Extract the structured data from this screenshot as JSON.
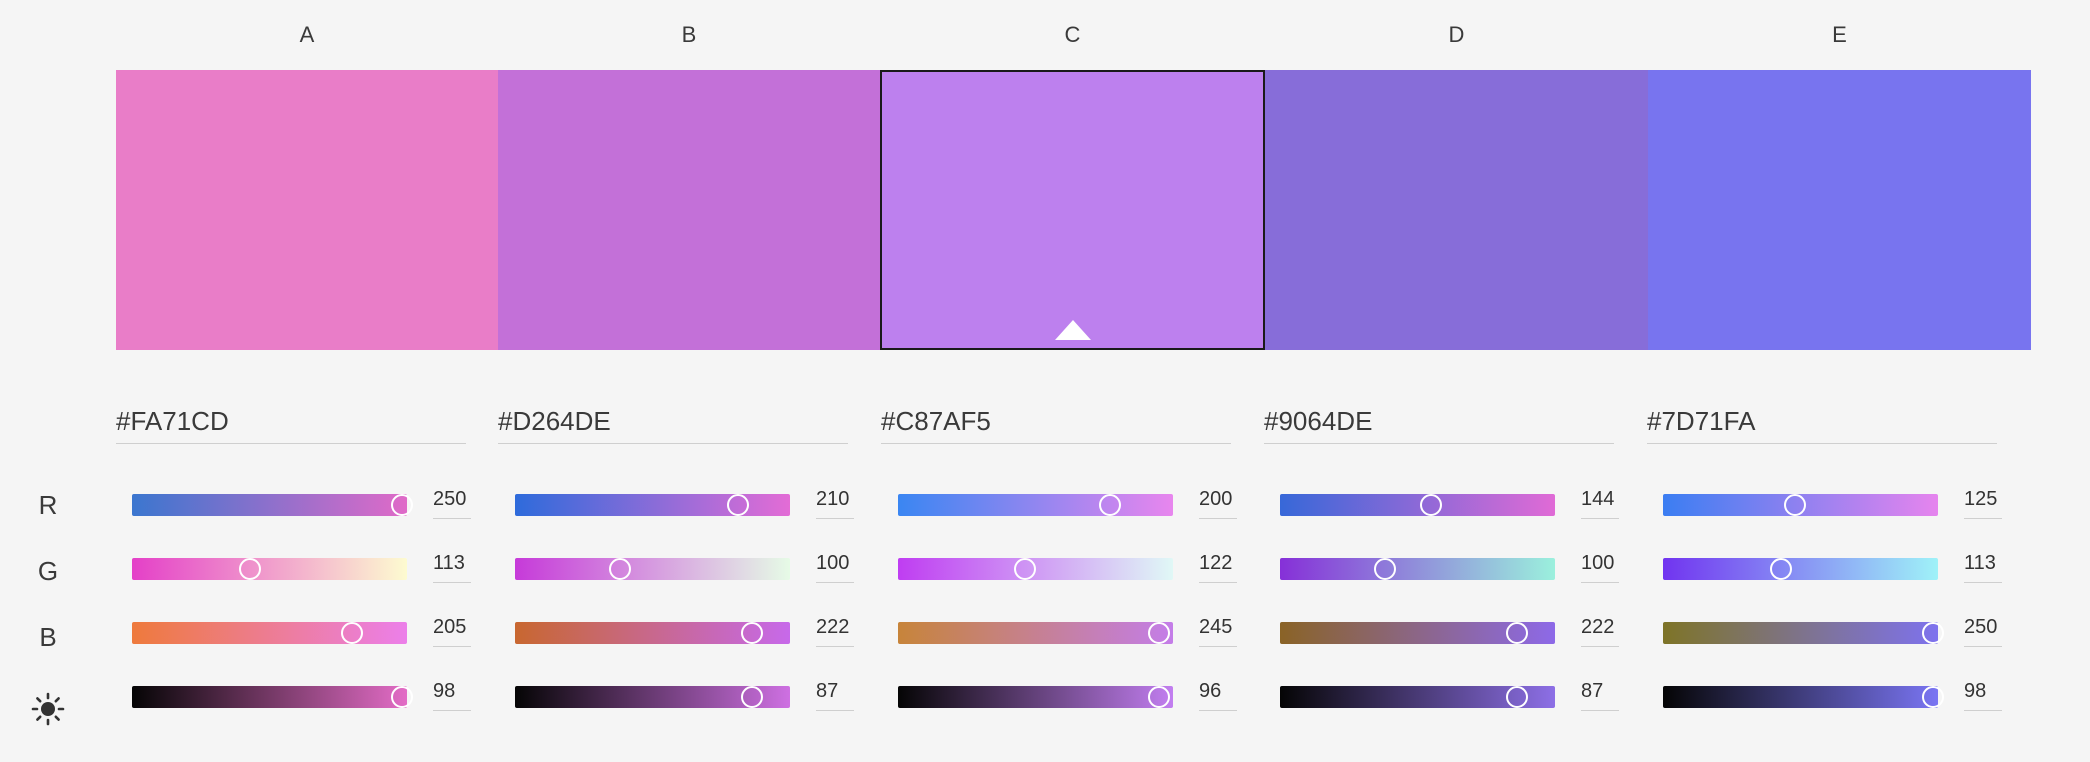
{
  "palette": {
    "columns": [
      {
        "letter": "A",
        "hex": "#FA71CD",
        "swatch_color": "#E97DC8",
        "selected": false,
        "sliders": {
          "r": {
            "value": "250",
            "frac": 0.98,
            "from": "#3b76cf",
            "to": "#e06ac8"
          },
          "g": {
            "value": "113",
            "frac": 0.43,
            "from": "#e440c8",
            "to": "#fdfbd0"
          },
          "b": {
            "value": "205",
            "frac": 0.8,
            "from": "#ee7a3c",
            "to": "#ec7fea"
          },
          "l": {
            "value": "98",
            "frac": 0.98,
            "from": "#050505",
            "to": "#e36cc6"
          }
        }
      },
      {
        "letter": "B",
        "hex": "#D264DE",
        "swatch_color": "#C370D8",
        "selected": false,
        "sliders": {
          "r": {
            "value": "210",
            "frac": 0.81,
            "from": "#2e6bdb",
            "to": "#e36cd6"
          },
          "g": {
            "value": "100",
            "frac": 0.38,
            "from": "#c63ad9",
            "to": "#e6fbe6"
          },
          "b": {
            "value": "222",
            "frac": 0.86,
            "from": "#c86730",
            "to": "#c769ea"
          },
          "l": {
            "value": "87",
            "frac": 0.86,
            "from": "#050505",
            "to": "#ce70e2"
          }
        }
      },
      {
        "letter": "C",
        "hex": "#C87AF5",
        "swatch_color": "#BD80EE",
        "selected": true,
        "sliders": {
          "r": {
            "value": "200",
            "frac": 0.77,
            "from": "#3a86f2",
            "to": "#e886ee"
          },
          "g": {
            "value": "122",
            "frac": 0.46,
            "from": "#bf3df2",
            "to": "#e0f8f6"
          },
          "b": {
            "value": "245",
            "frac": 0.95,
            "from": "#c7843a",
            "to": "#c47de9"
          },
          "l": {
            "value": "96",
            "frac": 0.95,
            "from": "#050505",
            "to": "#c27ef0"
          }
        }
      },
      {
        "letter": "D",
        "hex": "#9064DE",
        "swatch_color": "#876DD9",
        "selected": false,
        "sliders": {
          "r": {
            "value": "144",
            "frac": 0.55,
            "from": "#3768d8",
            "to": "#e06ad6"
          },
          "g": {
            "value": "100",
            "frac": 0.38,
            "from": "#8630d8",
            "to": "#9bf0dd"
          },
          "b": {
            "value": "222",
            "frac": 0.86,
            "from": "#8a6326",
            "to": "#8d69e8"
          },
          "l": {
            "value": "87",
            "frac": 0.86,
            "from": "#050505",
            "to": "#8d6fe6"
          }
        }
      },
      {
        "letter": "E",
        "hex": "#7D71FA",
        "swatch_color": "#7874EF",
        "selected": false,
        "sliders": {
          "r": {
            "value": "125",
            "frac": 0.48,
            "from": "#3b7ef2",
            "to": "#e684ee"
          },
          "g": {
            "value": "113",
            "frac": 0.43,
            "from": "#7134f0",
            "to": "#9ff2f8"
          },
          "b": {
            "value": "250",
            "frac": 0.98,
            "from": "#7e7427",
            "to": "#7e72ee"
          },
          "l": {
            "value": "98",
            "frac": 0.98,
            "from": "#050505",
            "to": "#7a75f3"
          }
        }
      }
    ]
  },
  "rows": {
    "r_label": "R",
    "g_label": "G",
    "b_label": "B",
    "brightness_icon": "brightness-icon"
  }
}
